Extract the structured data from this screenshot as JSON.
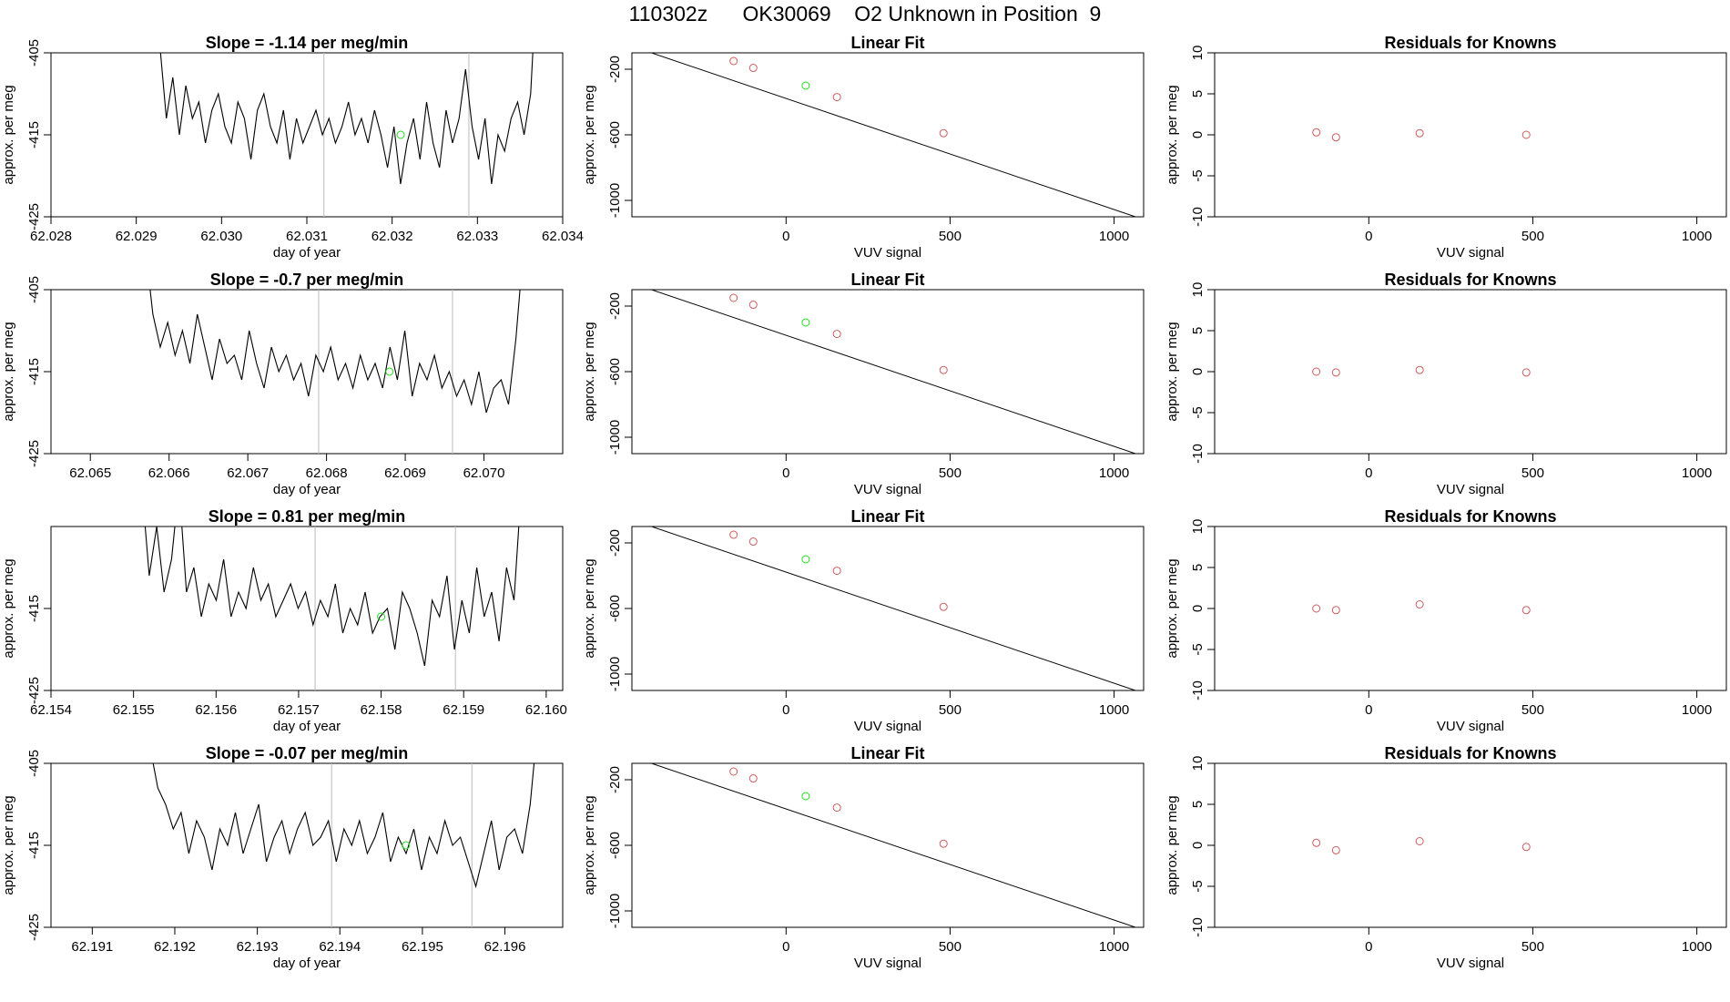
{
  "header": {
    "title": "110302z      OK30069    O2 Unknown in Position  9"
  },
  "colors": {
    "line": "#000000",
    "known_point": "#cd5c5c",
    "unknown_point": "#22dd22",
    "guide_line": "#bbbbbb",
    "frame": "#000000"
  },
  "chart_data": [
    {
      "type": "line",
      "row": 1,
      "panel": "timeseries",
      "title": "Slope =  -1.14  per meg/min",
      "xlabel": "day of year",
      "ylabel": "approx. per meg",
      "xlim": [
        62.028,
        62.034
      ],
      "ylim": [
        -425,
        -405
      ],
      "y_reversed": true,
      "xticks": [
        "62.028",
        "62.029",
        "62.030",
        "62.031",
        "62.032",
        "62.033",
        "62.034"
      ],
      "yticks": [
        "-405",
        "-415",
        "-425"
      ],
      "guide_lines": [
        62.0312,
        62.0329
      ],
      "trace_start": 62.0292,
      "trace_end": 62.0337,
      "trace": [
        -395,
        -404,
        -413,
        -408,
        -415,
        -409,
        -413,
        -411,
        -416,
        -412,
        -410,
        -414,
        -416,
        -411,
        -413,
        -418,
        -412,
        -410,
        -414,
        -416,
        -412,
        -418,
        -413,
        -416,
        -414,
        -412,
        -415,
        -413,
        -416,
        -414,
        -411,
        -415,
        -413,
        -416,
        -412,
        -415,
        -419,
        -414,
        -421,
        -416,
        -413,
        -418,
        -411,
        -416,
        -419,
        -412,
        -416,
        -413,
        -407,
        -414,
        -418,
        -413,
        -421,
        -415,
        -417,
        -413,
        -411,
        -415,
        -410,
        -395
      ],
      "unknown_point": {
        "x": 62.0321,
        "y": -415
      }
    },
    {
      "type": "scatter",
      "row": 1,
      "panel": "fit",
      "title": "Linear Fit",
      "xlabel": "VUV signal",
      "ylabel": "approx. per meg",
      "xlim": [
        -470,
        1090
      ],
      "ylim": [
        -1100,
        -100
      ],
      "xticks": [
        "0",
        "500",
        "1000"
      ],
      "yticks": [
        "-200",
        "-600",
        "-1000"
      ],
      "fit_line": {
        "x": [
          -440,
          1080
        ],
        "y": [
          -80,
          -1110
        ]
      },
      "known_points": {
        "x": [
          -160,
          -100,
          155,
          480
        ],
        "y": [
          -150,
          -192,
          -370,
          -590
        ]
      },
      "unknown_point": {
        "x": 60,
        "y": -300
      }
    },
    {
      "type": "scatter",
      "row": 1,
      "panel": "residuals",
      "title": "Residuals for Knowns",
      "xlabel": "VUV signal",
      "ylabel": "approx. per meg",
      "xlim": [
        -470,
        1090
      ],
      "ylim": [
        -10,
        10
      ],
      "xticks": [
        "0",
        "500",
        "1000"
      ],
      "yticks": [
        "-10",
        "-5",
        "0",
        "5",
        "10"
      ],
      "points": {
        "x": [
          -160,
          -100,
          155,
          480
        ],
        "y": [
          0.3,
          -0.3,
          0.2,
          0
        ]
      }
    },
    {
      "type": "line",
      "row": 2,
      "panel": "timeseries",
      "title": "Slope =  -0.7  per meg/min",
      "xlabel": "day of year",
      "ylabel": "approx. per meg",
      "xlim": [
        62.0645,
        62.071
      ],
      "ylim": [
        -425,
        -405
      ],
      "y_reversed": true,
      "xticks": [
        "62.065",
        "62.066",
        "62.067",
        "62.068",
        "62.069",
        "62.070"
      ],
      "yticks": [
        "-405",
        "-415",
        "-425"
      ],
      "guide_lines": [
        62.0679,
        62.0696
      ],
      "trace_start": 62.0657,
      "trace_end": 62.0705,
      "trace": [
        -400,
        -408,
        -412,
        -409,
        -413,
        -410,
        -414,
        -408,
        -412,
        -416,
        -411,
        -414,
        -413,
        -416,
        -410,
        -414,
        -417,
        -412,
        -415,
        -413,
        -416,
        -414,
        -418,
        -413,
        -415,
        -412,
        -416,
        -414,
        -417,
        -413,
        -416,
        -414,
        -417,
        -412,
        -416,
        -410,
        -418,
        -414,
        -416,
        -413,
        -417,
        -415,
        -418,
        -416,
        -419,
        -415,
        -420,
        -417,
        -416,
        -419,
        -411,
        -400
      ],
      "unknown_point": {
        "x": 62.0688,
        "y": -415
      }
    },
    {
      "type": "scatter",
      "row": 2,
      "panel": "fit",
      "title": "Linear Fit",
      "xlabel": "VUV signal",
      "ylabel": "approx. per meg",
      "xlim": [
        -470,
        1090
      ],
      "ylim": [
        -1100,
        -100
      ],
      "xticks": [
        "0",
        "500",
        "1000"
      ],
      "yticks": [
        "-200",
        "-600",
        "-1000"
      ],
      "fit_line": {
        "x": [
          -440,
          1080
        ],
        "y": [
          -80,
          -1110
        ]
      },
      "known_points": {
        "x": [
          -160,
          -100,
          155,
          480
        ],
        "y": [
          -150,
          -192,
          -370,
          -590
        ]
      },
      "unknown_point": {
        "x": 60,
        "y": -300
      }
    },
    {
      "type": "scatter",
      "row": 2,
      "panel": "residuals",
      "title": "Residuals for Knowns",
      "xlabel": "VUV signal",
      "ylabel": "approx. per meg",
      "xlim": [
        -470,
        1090
      ],
      "ylim": [
        -10,
        10
      ],
      "xticks": [
        "0",
        "500",
        "1000"
      ],
      "yticks": [
        "-10",
        "-5",
        "0",
        "5",
        "10"
      ],
      "points": {
        "x": [
          -160,
          -100,
          155,
          480
        ],
        "y": [
          0,
          -0.1,
          0.2,
          -0.1
        ]
      }
    },
    {
      "type": "line",
      "row": 3,
      "panel": "timeseries",
      "title": "Slope =  0.81  per meg/min",
      "xlabel": "day of year",
      "ylabel": "approx. per meg",
      "xlim": [
        62.154,
        62.1602
      ],
      "ylim": [
        -425,
        -405
      ],
      "y_reversed": true,
      "xticks": [
        "62.154",
        "62.155",
        "62.156",
        "62.157",
        "62.158",
        "62.159",
        "62.160"
      ],
      "yticks": [
        "-415",
        "-425"
      ],
      "guide_lines": [
        62.1572,
        62.1589
      ],
      "trace_start": 62.1551,
      "trace_end": 62.1597,
      "trace": [
        -400,
        -411,
        -405,
        -413,
        -409,
        -400,
        -413,
        -410,
        -416,
        -412,
        -414,
        -409,
        -416,
        -413,
        -415,
        -410,
        -414,
        -412,
        -416,
        -414,
        -412,
        -415,
        -413,
        -417,
        -414,
        -416,
        -412,
        -418,
        -415,
        -417,
        -413,
        -418,
        -416,
        -415,
        -420,
        -413,
        -415,
        -418,
        -422,
        -414,
        -416,
        -411,
        -420,
        -414,
        -418,
        -410,
        -416,
        -413,
        -419,
        -410,
        -414,
        -400
      ],
      "unknown_point": {
        "x": 62.158,
        "y": -416
      }
    },
    {
      "type": "scatter",
      "row": 3,
      "panel": "fit",
      "title": "Linear Fit",
      "xlabel": "VUV signal",
      "ylabel": "approx. per meg",
      "xlim": [
        -470,
        1090
      ],
      "ylim": [
        -1100,
        -100
      ],
      "xticks": [
        "0",
        "500",
        "1000"
      ],
      "yticks": [
        "-200",
        "-600",
        "-1000"
      ],
      "fit_line": {
        "x": [
          -440,
          1080
        ],
        "y": [
          -80,
          -1110
        ]
      },
      "known_points": {
        "x": [
          -160,
          -100,
          155,
          480
        ],
        "y": [
          -150,
          -192,
          -370,
          -590
        ]
      },
      "unknown_point": {
        "x": 60,
        "y": -300
      }
    },
    {
      "type": "scatter",
      "row": 3,
      "panel": "residuals",
      "title": "Residuals for Knowns",
      "xlabel": "VUV signal",
      "ylabel": "approx. per meg",
      "xlim": [
        -470,
        1090
      ],
      "ylim": [
        -10,
        10
      ],
      "xticks": [
        "0",
        "500",
        "1000"
      ],
      "yticks": [
        "-10",
        "-5",
        "0",
        "5",
        "10"
      ],
      "points": {
        "x": [
          -160,
          -100,
          155,
          480
        ],
        "y": [
          0,
          -0.2,
          0.5,
          -0.2
        ]
      }
    },
    {
      "type": "line",
      "row": 4,
      "panel": "timeseries",
      "title": "Slope =  -0.07  per meg/min",
      "xlabel": "day of year",
      "ylabel": "approx. per meg",
      "xlim": [
        62.1905,
        62.1967
      ],
      "ylim": [
        -425,
        -405
      ],
      "y_reversed": true,
      "xticks": [
        "62.191",
        "62.192",
        "62.193",
        "62.194",
        "62.195",
        "62.196"
      ],
      "yticks": [
        "-405",
        "-415",
        "-425"
      ],
      "guide_lines": [
        62.1939,
        62.1956
      ],
      "trace_start": 62.1917,
      "trace_end": 62.1964,
      "trace": [
        -403,
        -408,
        -410,
        -413,
        -411,
        -416,
        -412,
        -414,
        -418,
        -413,
        -415,
        -411,
        -416,
        -413,
        -410,
        -417,
        -414,
        -412,
        -416,
        -413,
        -411,
        -415,
        -414,
        -412,
        -417,
        -413,
        -415,
        -412,
        -416,
        -414,
        -411,
        -417,
        -414,
        -416,
        -413,
        -418,
        -414,
        -416,
        -412,
        -415,
        -414,
        -417,
        -420,
        -416,
        -412,
        -418,
        -414,
        -413,
        -416,
        -410,
        -400
      ],
      "unknown_point": {
        "x": 62.1948,
        "y": -415
      }
    },
    {
      "type": "scatter",
      "row": 4,
      "panel": "fit",
      "title": "Linear Fit",
      "xlabel": "VUV signal",
      "ylabel": "approx. per meg",
      "xlim": [
        -470,
        1090
      ],
      "ylim": [
        -1100,
        -100
      ],
      "xticks": [
        "0",
        "500",
        "1000"
      ],
      "yticks": [
        "-200",
        "-600",
        "-1000"
      ],
      "fit_line": {
        "x": [
          -440,
          1080
        ],
        "y": [
          -80,
          -1110
        ]
      },
      "known_points": {
        "x": [
          -160,
          -100,
          155,
          480
        ],
        "y": [
          -150,
          -192,
          -370,
          -590
        ]
      },
      "unknown_point": {
        "x": 60,
        "y": -300
      }
    },
    {
      "type": "scatter",
      "row": 4,
      "panel": "residuals",
      "title": "Residuals for Knowns",
      "xlabel": "VUV signal",
      "ylabel": "approx. per meg",
      "xlim": [
        -470,
        1090
      ],
      "ylim": [
        -10,
        10
      ],
      "xticks": [
        "0",
        "500",
        "1000"
      ],
      "yticks": [
        "-10",
        "-5",
        "0",
        "5",
        "10"
      ],
      "points": {
        "x": [
          -160,
          -100,
          155,
          480
        ],
        "y": [
          0.3,
          -0.6,
          0.5,
          -0.2
        ]
      }
    }
  ]
}
